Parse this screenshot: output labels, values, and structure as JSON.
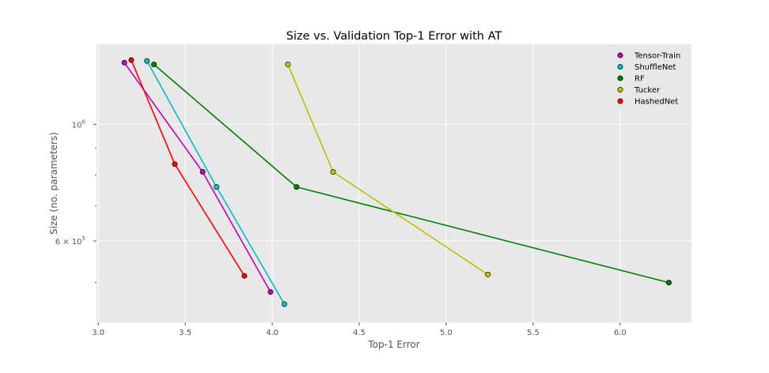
{
  "chart_data": {
    "type": "line",
    "title": "Size vs. Validation Top-1 Error with AT",
    "xlabel": "Top-1 Error",
    "ylabel": "Size (no. parameters)",
    "xlim": [
      2.99,
      6.41
    ],
    "ylim": [
      420000,
      1420000
    ],
    "yscale": "log",
    "grid": true,
    "legend_position": "top-right",
    "x_ticks": [
      {
        "value": 3.0,
        "label": "3.0"
      },
      {
        "value": 3.5,
        "label": "3.5"
      },
      {
        "value": 4.0,
        "label": "4.0"
      },
      {
        "value": 4.5,
        "label": "4.5"
      },
      {
        "value": 5.0,
        "label": "5.0"
      },
      {
        "value": 5.5,
        "label": "5.5"
      },
      {
        "value": 6.0,
        "label": "6.0"
      }
    ],
    "y_major_ticks": [
      {
        "value": 1000000,
        "base": "10",
        "exp": "6"
      },
      {
        "value": 600000,
        "base": "6 × 10",
        "exp": "5"
      }
    ],
    "y_minor_ticks": [
      500000,
      700000,
      800000,
      900000
    ],
    "series": [
      {
        "name": "Tensor-Train",
        "color": "#bf00bf",
        "x": [
          3.15,
          3.6,
          3.99
        ],
        "y": [
          1310000,
          812000,
          480000
        ]
      },
      {
        "name": "ShuffleNet",
        "color": "#00bfbf",
        "x": [
          3.28,
          3.68,
          4.07
        ],
        "y": [
          1320000,
          760000,
          455000
        ]
      },
      {
        "name": "RF",
        "color": "#008000",
        "x": [
          3.32,
          4.14,
          6.28
        ],
        "y": [
          1300000,
          760000,
          500000
        ]
      },
      {
        "name": "Tucker",
        "color": "#bfbf00",
        "x": [
          4.09,
          4.35,
          5.24
        ],
        "y": [
          1300000,
          812000,
          518000
        ]
      },
      {
        "name": "HashedNet",
        "color": "#ff0000",
        "x": [
          3.19,
          3.44,
          3.84
        ],
        "y": [
          1325000,
          840000,
          515000
        ]
      }
    ]
  }
}
